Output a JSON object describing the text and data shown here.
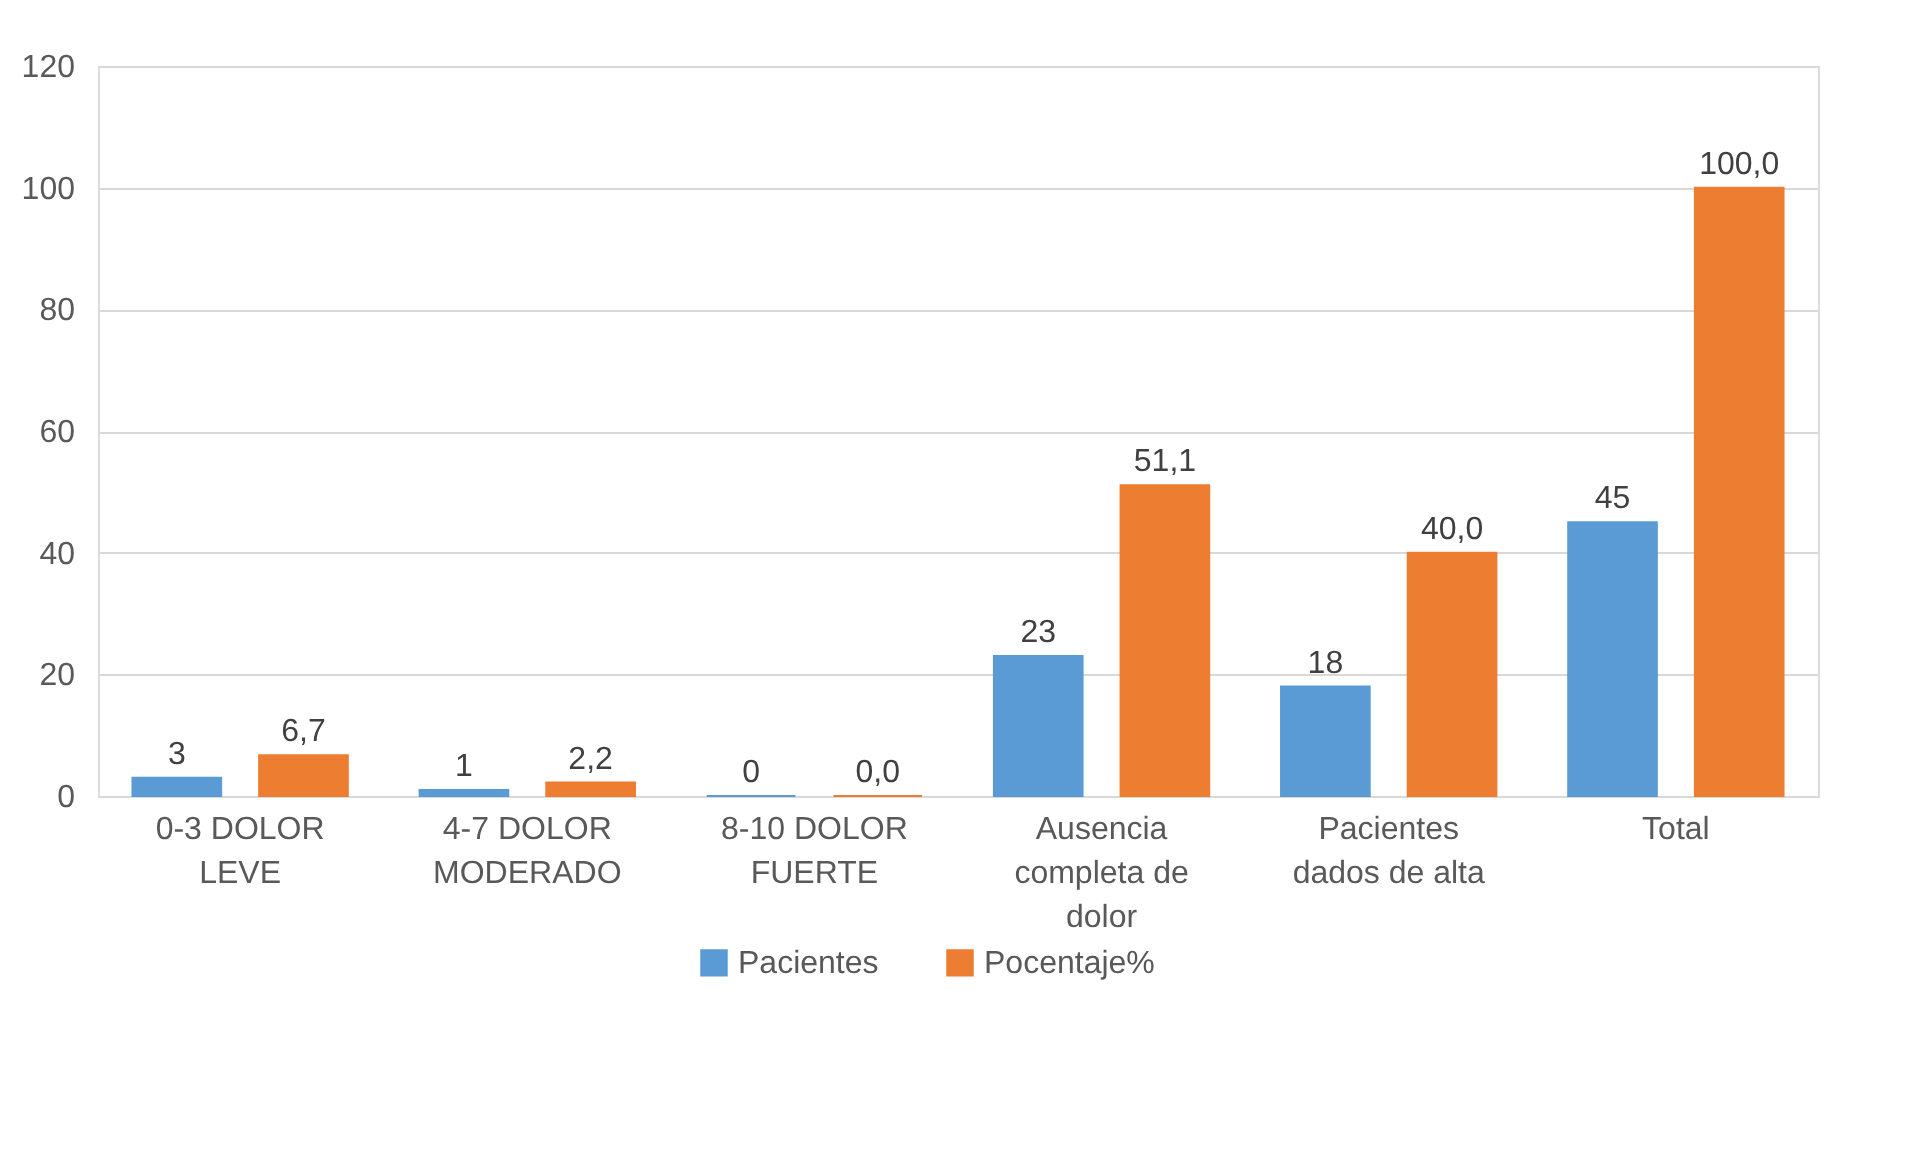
{
  "chart_data": {
    "type": "bar",
    "categories": [
      "0-3 DOLOR LEVE",
      "4-7 DOLOR MODERADO",
      "8-10 DOLOR FUERTE",
      "Ausencia completa de dolor",
      "Pacientes dados de alta",
      "Total"
    ],
    "series": [
      {
        "name": "Pacientes",
        "color": "#5b9bd5",
        "values": [
          3,
          1,
          0,
          23,
          18,
          45
        ],
        "value_labels": [
          "3",
          "1",
          "0",
          "23",
          "18",
          "45"
        ]
      },
      {
        "name": "Pocentaje%",
        "color": "#ed7d31",
        "values": [
          6.7,
          2.2,
          0.0,
          51.1,
          40.0,
          100.0
        ],
        "value_labels": [
          "6,7",
          "2,2",
          "0,0",
          "51,1",
          "40,0",
          "100,0"
        ]
      }
    ],
    "ylim": [
      0,
      120
    ],
    "yticks": [
      0,
      20,
      40,
      60,
      80,
      100,
      120
    ],
    "grid": "y",
    "legend": "bottom"
  }
}
